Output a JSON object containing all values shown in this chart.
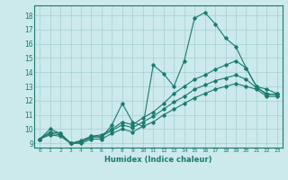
{
  "title": "",
  "xlabel": "Humidex (Indice chaleur)",
  "ylabel": "",
  "background_color": "#cce9ec",
  "grid_color": "#aad4d8",
  "line_color": "#1a7a6e",
  "xlim": [
    -0.5,
    23.5
  ],
  "ylim": [
    8.7,
    18.7
  ],
  "yticks": [
    9,
    10,
    11,
    12,
    13,
    14,
    15,
    16,
    17,
    18
  ],
  "xtick_labels": [
    "0",
    "1",
    "2",
    "3",
    "4",
    "5",
    "6",
    "7",
    "8",
    "9",
    "10",
    "11",
    "12",
    "13",
    "14",
    "15",
    "16",
    "17",
    "18",
    "19",
    "20",
    "21",
    "22",
    "23"
  ],
  "series": [
    [
      9.3,
      10.0,
      9.7,
      9.0,
      9.1,
      9.5,
      9.4,
      10.3,
      11.8,
      10.5,
      10.2,
      14.5,
      13.9,
      13.0,
      14.8,
      17.8,
      18.2,
      17.4,
      16.4,
      15.8,
      14.3,
      13.0,
      12.4,
      12.5
    ],
    [
      9.3,
      9.8,
      9.7,
      9.0,
      9.2,
      9.5,
      9.6,
      10.0,
      10.5,
      10.3,
      10.8,
      11.2,
      11.8,
      12.5,
      13.0,
      13.5,
      13.8,
      14.2,
      14.5,
      14.8,
      14.3,
      13.0,
      12.8,
      12.5
    ],
    [
      9.3,
      9.7,
      9.6,
      9.0,
      9.1,
      9.4,
      9.5,
      9.9,
      10.3,
      10.1,
      10.5,
      10.9,
      11.4,
      11.9,
      12.3,
      12.8,
      13.1,
      13.4,
      13.6,
      13.8,
      13.5,
      12.9,
      12.5,
      12.4
    ],
    [
      9.3,
      9.6,
      9.5,
      9.0,
      9.0,
      9.3,
      9.3,
      9.7,
      10.0,
      9.8,
      10.2,
      10.5,
      11.0,
      11.4,
      11.8,
      12.2,
      12.5,
      12.8,
      13.0,
      13.2,
      13.0,
      12.8,
      12.3,
      12.3
    ]
  ]
}
